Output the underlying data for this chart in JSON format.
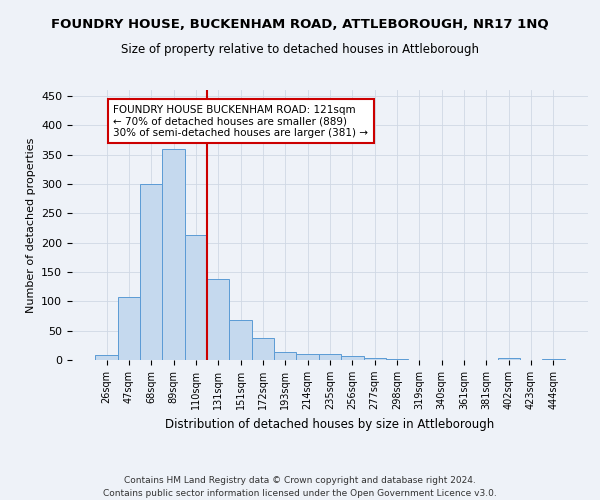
{
  "title": "FOUNDRY HOUSE, BUCKENHAM ROAD, ATTLEBOROUGH, NR17 1NQ",
  "subtitle": "Size of property relative to detached houses in Attleborough",
  "xlabel": "Distribution of detached houses by size in Attleborough",
  "ylabel": "Number of detached properties",
  "footer_line1": "Contains HM Land Registry data © Crown copyright and database right 2024.",
  "footer_line2": "Contains public sector information licensed under the Open Government Licence v3.0.",
  "bar_labels": [
    "26sqm",
    "47sqm",
    "68sqm",
    "89sqm",
    "110sqm",
    "131sqm",
    "151sqm",
    "172sqm",
    "193sqm",
    "214sqm",
    "235sqm",
    "256sqm",
    "277sqm",
    "298sqm",
    "319sqm",
    "340sqm",
    "361sqm",
    "381sqm",
    "402sqm",
    "423sqm",
    "444sqm"
  ],
  "bar_values": [
    8,
    108,
    300,
    360,
    213,
    138,
    69,
    38,
    13,
    10,
    10,
    6,
    3,
    2,
    0,
    0,
    0,
    0,
    3,
    0,
    2
  ],
  "bar_color": "#c5d9ee",
  "bar_edge_color": "#5b9bd5",
  "grid_color": "#d0d8e4",
  "vline_x": 4.5,
  "vline_color": "#cc0000",
  "annotation_text": "FOUNDRY HOUSE BUCKENHAM ROAD: 121sqm\n← 70% of detached houses are smaller (889)\n30% of semi-detached houses are larger (381) →",
  "annotation_box_color": "white",
  "annotation_box_edge": "#cc0000",
  "ylim": [
    0,
    460
  ],
  "yticks": [
    0,
    50,
    100,
    150,
    200,
    250,
    300,
    350,
    400,
    450
  ],
  "bg_color": "#eef2f8"
}
